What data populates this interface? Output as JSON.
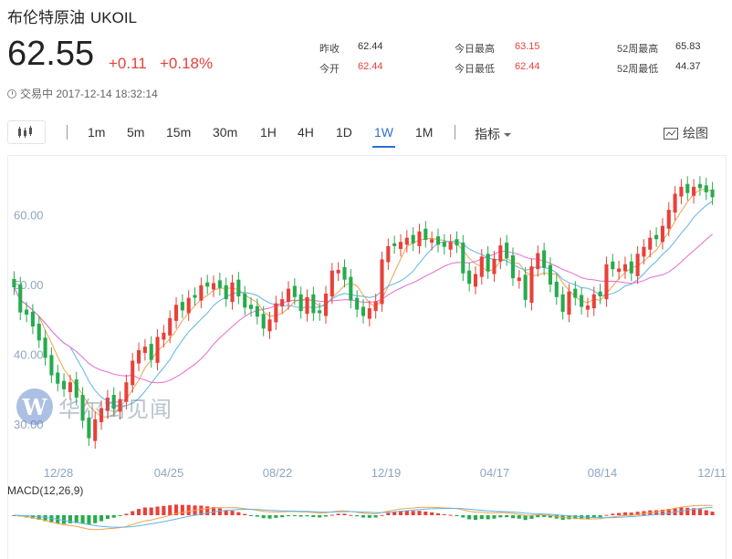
{
  "header": {
    "name": "布伦特原油",
    "symbol": "UKOIL",
    "price": "62.55",
    "change": "+0.11",
    "change_pct": "+0.18%",
    "status": "交易中 2017-12-14 18:32:14"
  },
  "stats": [
    {
      "label": "昨收",
      "value": "62.44",
      "color": "dark"
    },
    {
      "label": "今开",
      "value": "62.44",
      "color": "red"
    },
    {
      "label": "今日最高",
      "value": "63.15",
      "color": "red"
    },
    {
      "label": "今日最低",
      "value": "62.44",
      "color": "red"
    },
    {
      "label": "52周最高",
      "value": "65.83",
      "color": "dark"
    },
    {
      "label": "52周最低",
      "value": "44.37",
      "color": "dark"
    }
  ],
  "toolbar": {
    "timeframes": [
      "1m",
      "5m",
      "15m",
      "30m",
      "1H",
      "4H",
      "1D",
      "1W",
      "1M"
    ],
    "active": "1W",
    "indicator_label": "指标",
    "draw_label": "绘图"
  },
  "watermark": {
    "logo": "W",
    "text": "华尔街见闻"
  },
  "colors": {
    "up": "#e8413a",
    "down": "#27ab4c",
    "ma_short": "#f4a14a",
    "ma_mid": "#5fb4e6",
    "ma_long": "#e86bd3",
    "accent": "#2c6ed5"
  },
  "chart_data": {
    "type": "candlestick",
    "y_ticks": [
      "60.00",
      "50.00",
      "40.00",
      "30.00"
    ],
    "ylim": [
      26.5,
      67.5
    ],
    "x_ticks": [
      "12/28",
      "04/25",
      "08/22",
      "12/19",
      "04/17",
      "08/14",
      "12/11"
    ],
    "close": [
      49.6,
      46.0,
      45.7,
      44.0,
      42.0,
      39.5,
      37.0,
      35.8,
      35.0,
      36.0,
      33.8,
      30.5,
      28.0,
      30.7,
      32.3,
      33.8,
      32.2,
      33.6,
      36.0,
      39.1,
      40.6,
      41.1,
      39.2,
      42.5,
      43.1,
      45.2,
      47.1,
      46.3,
      48.1,
      48.1,
      49.9,
      49.7,
      50.2,
      49.5,
      47.9,
      50.3,
      48.3,
      46.7,
      46.5,
      45.4,
      43.7,
      45.0,
      47.3,
      47.9,
      49.4,
      48.2,
      46.2,
      48.2,
      45.9,
      45.9,
      48.7,
      52.0,
      52.1,
      50.7,
      47.7,
      46.4,
      45.5,
      46.6,
      47.6,
      53.6,
      55.5,
      55.5,
      56.1,
      56.7,
      55.9,
      57.6,
      56.4,
      56.5,
      55.7,
      55.4,
      56.1,
      55.6,
      51.6,
      50.1,
      51.5,
      54.0,
      51.9,
      53.7,
      55.6,
      53.8,
      50.9,
      51.0,
      47.8,
      52.6,
      54.5,
      52.4,
      50.0,
      48.2,
      46.1,
      49.0,
      48.1,
      46.8,
      47.0,
      48.6,
      48.3,
      52.9,
      52.2,
      52.3,
      52.9,
      51.6,
      54.4,
      55.4,
      56.7,
      56.5,
      58.4,
      60.7,
      63.0,
      64.0,
      63.1,
      64.0,
      63.8,
      63.2,
      62.5
    ]
  },
  "macd": {
    "label": "MACD(12,26,9)"
  }
}
